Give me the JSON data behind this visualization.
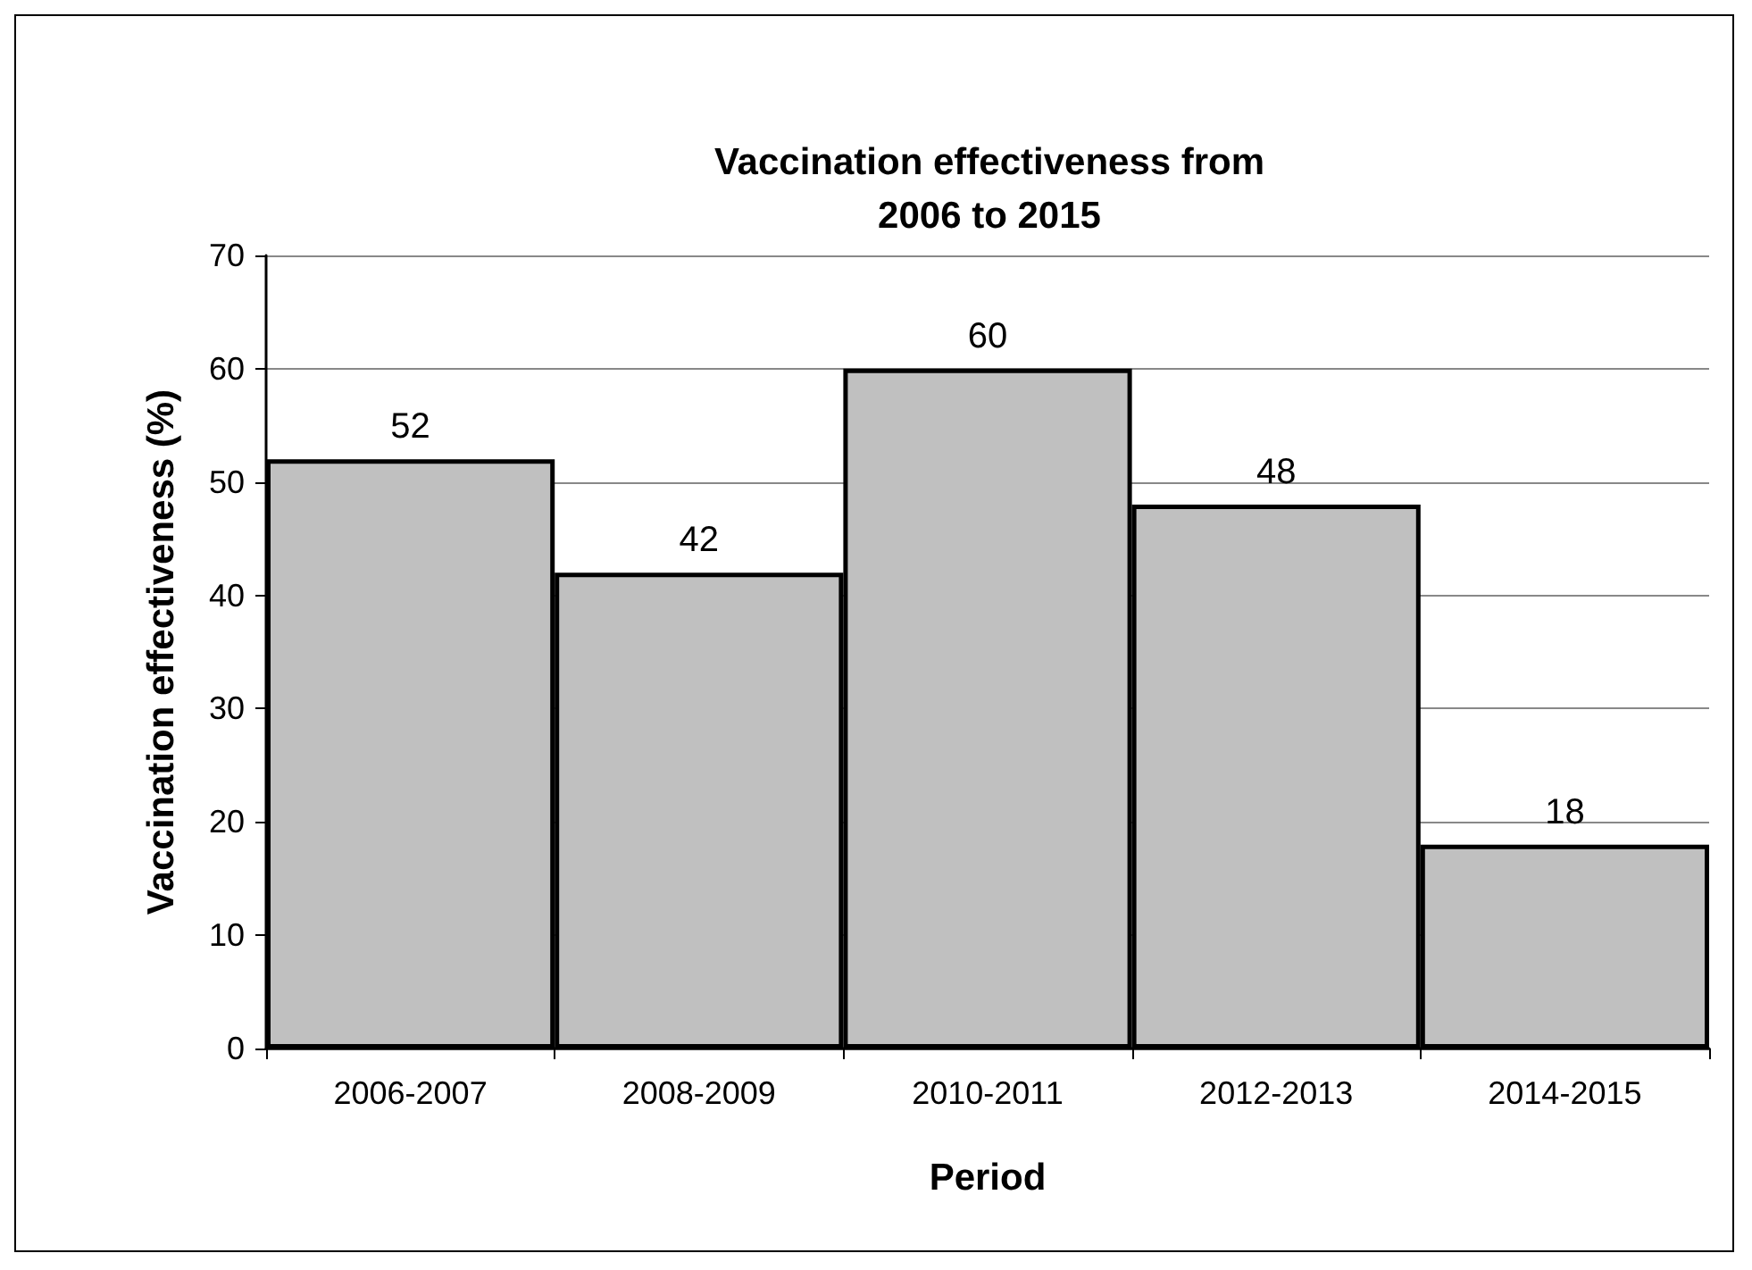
{
  "chart_data": {
    "type": "bar",
    "title": "Vaccination effectiveness from\n2006 to 2015",
    "xlabel": "Period",
    "ylabel": "Vaccination effectiveness (%)",
    "categories": [
      "2006-2007",
      "2008-2009",
      "2010-2011",
      "2012-2013",
      "2014-2015"
    ],
    "values": [
      52,
      42,
      60,
      48,
      18
    ],
    "color": "#c0c0c0",
    "ylim": [
      0,
      70
    ],
    "yticks": [
      0,
      10,
      20,
      30,
      40,
      50,
      60,
      70
    ],
    "grid": "y",
    "data_labels": true
  }
}
